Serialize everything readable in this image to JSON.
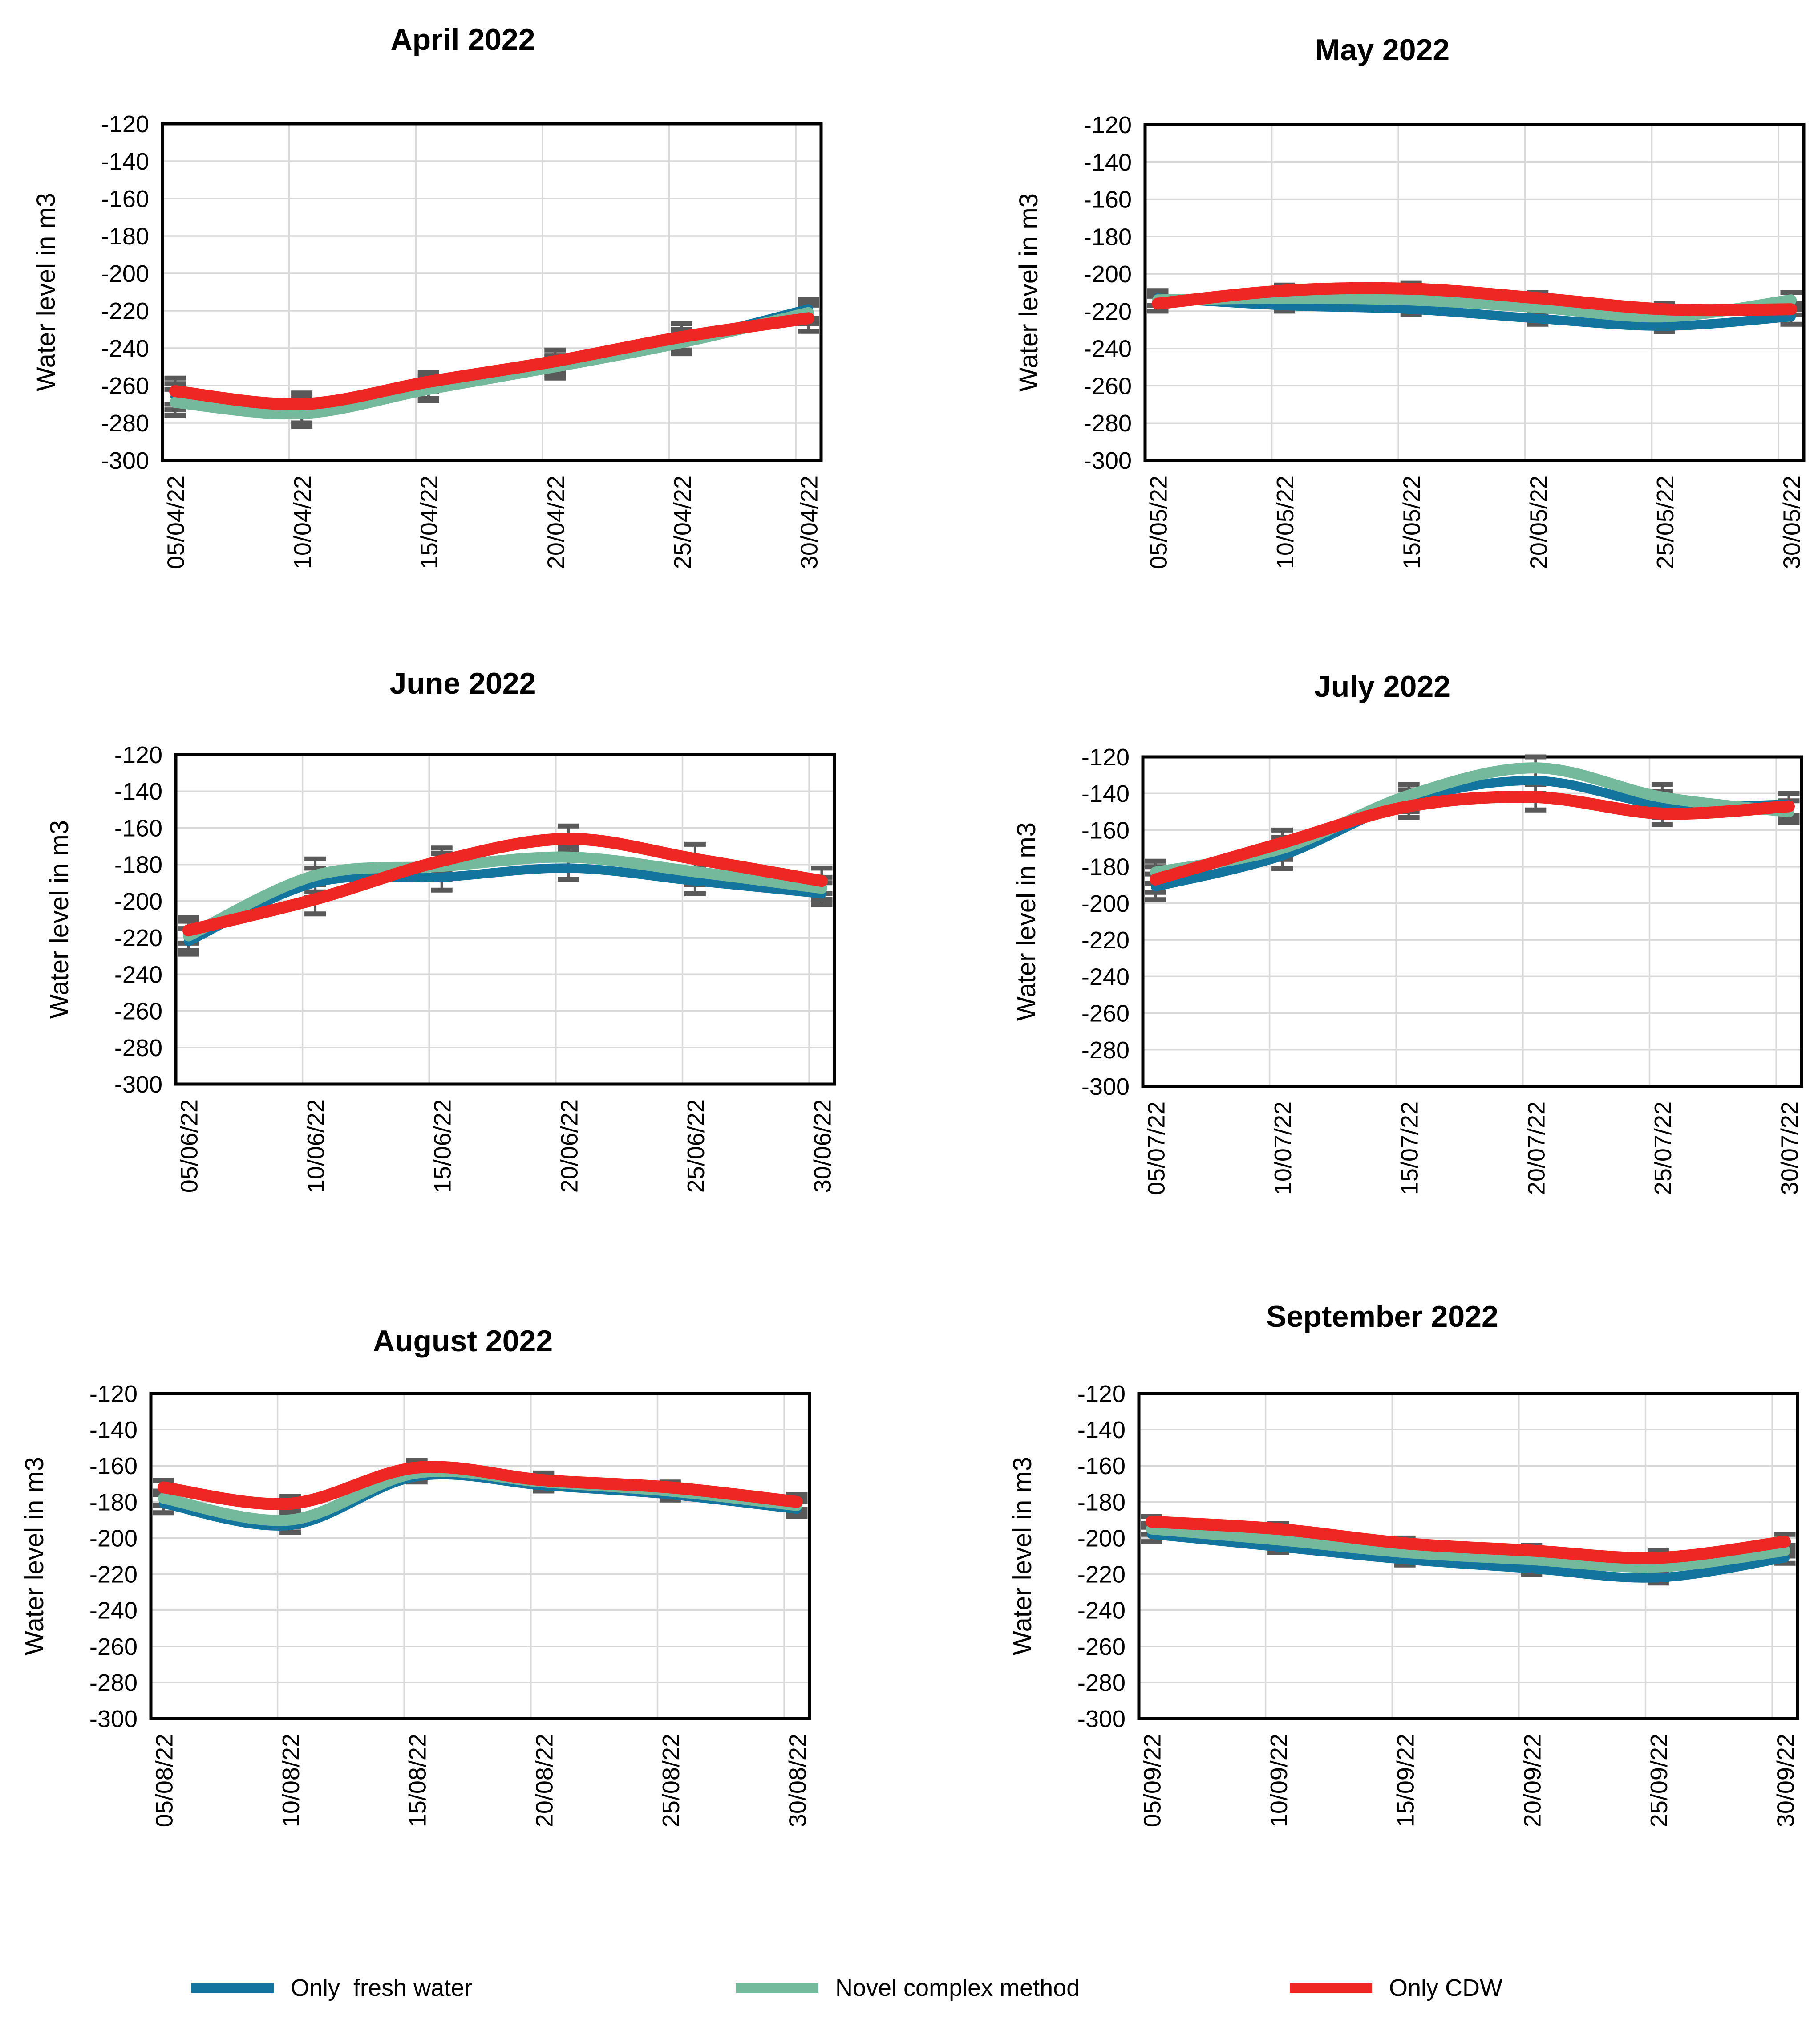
{
  "page": {
    "background": "#ffffff"
  },
  "colors": {
    "fresh_water": "#13749e",
    "novel_complex": "#74b99c",
    "cdw": "#ee2724",
    "error_bar": "#595959",
    "gridline": "#d9d9d9",
    "plot_border": "#000000",
    "text": "#000000"
  },
  "legend": {
    "items": [
      {
        "label": "Only  fresh water",
        "color_key": "fresh_water"
      },
      {
        "label": "Novel complex method",
        "color_key": "novel_complex"
      },
      {
        "label": "Only CDW",
        "color_key": "cdw"
      }
    ]
  },
  "chart_data": [
    {
      "type": "line",
      "title": "April 2022",
      "ylabel": "Water level in m3",
      "ylim": [
        -300,
        -120
      ],
      "ytick_step": 20,
      "yticks": [
        "-120",
        "-140",
        "-160",
        "-180",
        "-200",
        "-220",
        "-240",
        "-260",
        "-280",
        "-300"
      ],
      "grid": true,
      "categories": [
        "05/04/22",
        "10/04/22",
        "15/04/22",
        "20/04/22",
        "25/04/22",
        "30/04/22"
      ],
      "series": [
        {
          "name": "Only  fresh water",
          "color_key": "fresh_water",
          "values": [
            -266,
            -273,
            -261,
            -249,
            -236,
            -219
          ],
          "err": [
            7,
            7,
            6,
            5,
            6,
            5
          ]
        },
        {
          "name": "Novel complex method",
          "color_key": "novel_complex",
          "values": [
            -269,
            -275,
            -262,
            -250,
            -237,
            -221
          ],
          "err": [
            7,
            7,
            6,
            6,
            6,
            6
          ]
        },
        {
          "name": "Only CDW",
          "color_key": "cdw",
          "values": [
            -263,
            -270,
            -258,
            -247,
            -234,
            -224
          ],
          "err": [
            7,
            6,
            5,
            6,
            7,
            7
          ]
        }
      ]
    },
    {
      "type": "line",
      "title": "May 2022",
      "ylabel": "Water level in m3",
      "ylim": [
        -300,
        -120
      ],
      "ytick_step": 20,
      "yticks": [
        "-120",
        "-140",
        "-160",
        "-180",
        "-200",
        "-220",
        "-240",
        "-260",
        "-280",
        "-300"
      ],
      "grid": true,
      "categories": [
        "05/05/22",
        "10/05/22",
        "15/05/22",
        "20/05/22",
        "25/05/22",
        "30/05/22"
      ],
      "series": [
        {
          "name": "Only  fresh water",
          "color_key": "fresh_water",
          "values": [
            -213,
            -217,
            -219,
            -224,
            -228,
            -223
          ],
          "err": [
            4,
            3,
            3,
            3,
            3,
            4
          ]
        },
        {
          "name": "Novel complex method",
          "color_key": "novel_complex",
          "values": [
            -214,
            -213,
            -214,
            -218,
            -223,
            -214
          ],
          "err": [
            3,
            3,
            3,
            3,
            3,
            4
          ]
        },
        {
          "name": "Only CDW",
          "color_key": "cdw",
          "values": [
            -216,
            -209,
            -208,
            -213,
            -219,
            -219
          ],
          "err": [
            4,
            3,
            3,
            3,
            3,
            3
          ]
        }
      ]
    },
    {
      "type": "line",
      "title": "June 2022",
      "ylabel": "Water level in m3",
      "ylim": [
        -300,
        -120
      ],
      "ytick_step": 20,
      "yticks": [
        "-120",
        "-140",
        "-160",
        "-180",
        "-200",
        "-220",
        "-240",
        "-260",
        "-280",
        "-300"
      ],
      "grid": true,
      "categories": [
        "05/06/22",
        "10/06/22",
        "15/06/22",
        "20/06/22",
        "25/06/22",
        "30/06/22"
      ],
      "series": [
        {
          "name": "Only  fresh water",
          "color_key": "fresh_water",
          "values": [
            -222,
            -190,
            -187,
            -182,
            -189,
            -196
          ],
          "err": [
            7,
            8,
            7,
            6,
            7,
            6
          ]
        },
        {
          "name": "Novel complex method",
          "color_key": "novel_complex",
          "values": [
            -219,
            -186,
            -181,
            -176,
            -184,
            -193
          ],
          "err": [
            8,
            9,
            7,
            6,
            7,
            6
          ]
        },
        {
          "name": "Only CDW",
          "color_key": "cdw",
          "values": [
            -216,
            -199,
            -178,
            -166,
            -177,
            -189
          ],
          "err": [
            7,
            8,
            7,
            7,
            8,
            7
          ]
        }
      ]
    },
    {
      "type": "line",
      "title": "July 2022",
      "ylabel": "Water level in m3",
      "ylim": [
        -300,
        -120
      ],
      "ytick_step": 20,
      "yticks": [
        "-120",
        "-140",
        "-160",
        "-180",
        "-200",
        "-220",
        "-240",
        "-260",
        "-280",
        "-300"
      ],
      "grid": true,
      "categories": [
        "05/07/22",
        "10/07/22",
        "15/07/22",
        "20/07/22",
        "25/07/22",
        "30/07/22"
      ],
      "series": [
        {
          "name": "Only  fresh water",
          "color_key": "fresh_water",
          "values": [
            -191,
            -174,
            -144,
            -133,
            -146,
            -146
          ],
          "err": [
            7,
            7,
            6,
            7,
            7,
            6
          ]
        },
        {
          "name": "Novel complex method",
          "color_key": "novel_complex",
          "values": [
            -183,
            -170,
            -141,
            -126,
            -142,
            -150
          ],
          "err": [
            6,
            6,
            6,
            6,
            7,
            6
          ]
        },
        {
          "name": "Only CDW",
          "color_key": "cdw",
          "values": [
            -187,
            -167,
            -147,
            -142,
            -151,
            -147
          ],
          "err": [
            7,
            7,
            6,
            7,
            6,
            7
          ]
        }
      ]
    },
    {
      "type": "line",
      "title": "August 2022",
      "ylabel": "Water level in m3",
      "ylim": [
        -300,
        -120
      ],
      "ytick_step": 20,
      "yticks": [
        "-120",
        "-140",
        "-160",
        "-180",
        "-200",
        "-220",
        "-240",
        "-260",
        "-280",
        "-300"
      ],
      "grid": true,
      "categories": [
        "05/08/22",
        "10/08/22",
        "15/08/22",
        "20/08/22",
        "25/08/22",
        "30/08/22"
      ],
      "series": [
        {
          "name": "Only  fresh water",
          "color_key": "fresh_water",
          "values": [
            -181,
            -193,
            -166,
            -171,
            -176,
            -184
          ],
          "err": [
            5,
            4,
            3,
            3,
            3,
            4
          ]
        },
        {
          "name": "Novel complex method",
          "color_key": "novel_complex",
          "values": [
            -178,
            -190,
            -164,
            -169,
            -174,
            -182
          ],
          "err": [
            4,
            4,
            3,
            3,
            3,
            4
          ]
        },
        {
          "name": "Only CDW",
          "color_key": "cdw",
          "values": [
            -172,
            -181,
            -161,
            -168,
            -172,
            -180
          ],
          "err": [
            4,
            4,
            4,
            4,
            3,
            4
          ]
        }
      ]
    },
    {
      "type": "line",
      "title": "September 2022",
      "ylabel": "Water level in m3",
      "ylim": [
        -300,
        -120
      ],
      "ytick_step": 20,
      "yticks": [
        "-120",
        "-140",
        "-160",
        "-180",
        "-200",
        "-220",
        "-240",
        "-260",
        "-280",
        "-300"
      ],
      "grid": true,
      "categories": [
        "05/09/22",
        "10/09/22",
        "15/09/22",
        "20/09/22",
        "25/09/22",
        "30/09/22"
      ],
      "series": [
        {
          "name": "Only  fresh water",
          "color_key": "fresh_water",
          "values": [
            -198,
            -205,
            -212,
            -217,
            -222,
            -211
          ],
          "err": [
            4,
            3,
            3,
            3,
            3,
            3
          ]
        },
        {
          "name": "Novel complex method",
          "color_key": "novel_complex",
          "values": [
            -195,
            -201,
            -208,
            -212,
            -216,
            -207
          ],
          "err": [
            3,
            3,
            3,
            3,
            3,
            3
          ]
        },
        {
          "name": "Only CDW",
          "color_key": "cdw",
          "values": [
            -191,
            -195,
            -203,
            -207,
            -211,
            -202
          ],
          "err": [
            3,
            3,
            3,
            3,
            4,
            4
          ]
        }
      ]
    }
  ]
}
